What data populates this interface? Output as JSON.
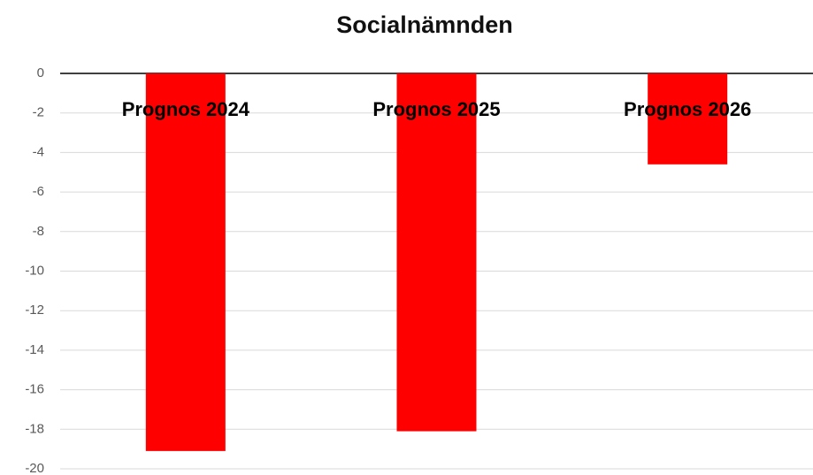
{
  "chart_data": {
    "type": "bar",
    "title": "Socialnämnden",
    "categories": [
      "Prognos 2024",
      "Prognos 2025",
      "Prognos 2026"
    ],
    "values": [
      -19.1,
      -18.1,
      -4.6
    ],
    "color": "#ff0000",
    "ylim": [
      -20,
      0
    ],
    "yticks": [
      0,
      -2,
      -4,
      -6,
      -8,
      -10,
      -12,
      -14,
      -16,
      -18,
      -20
    ],
    "grid": true
  }
}
